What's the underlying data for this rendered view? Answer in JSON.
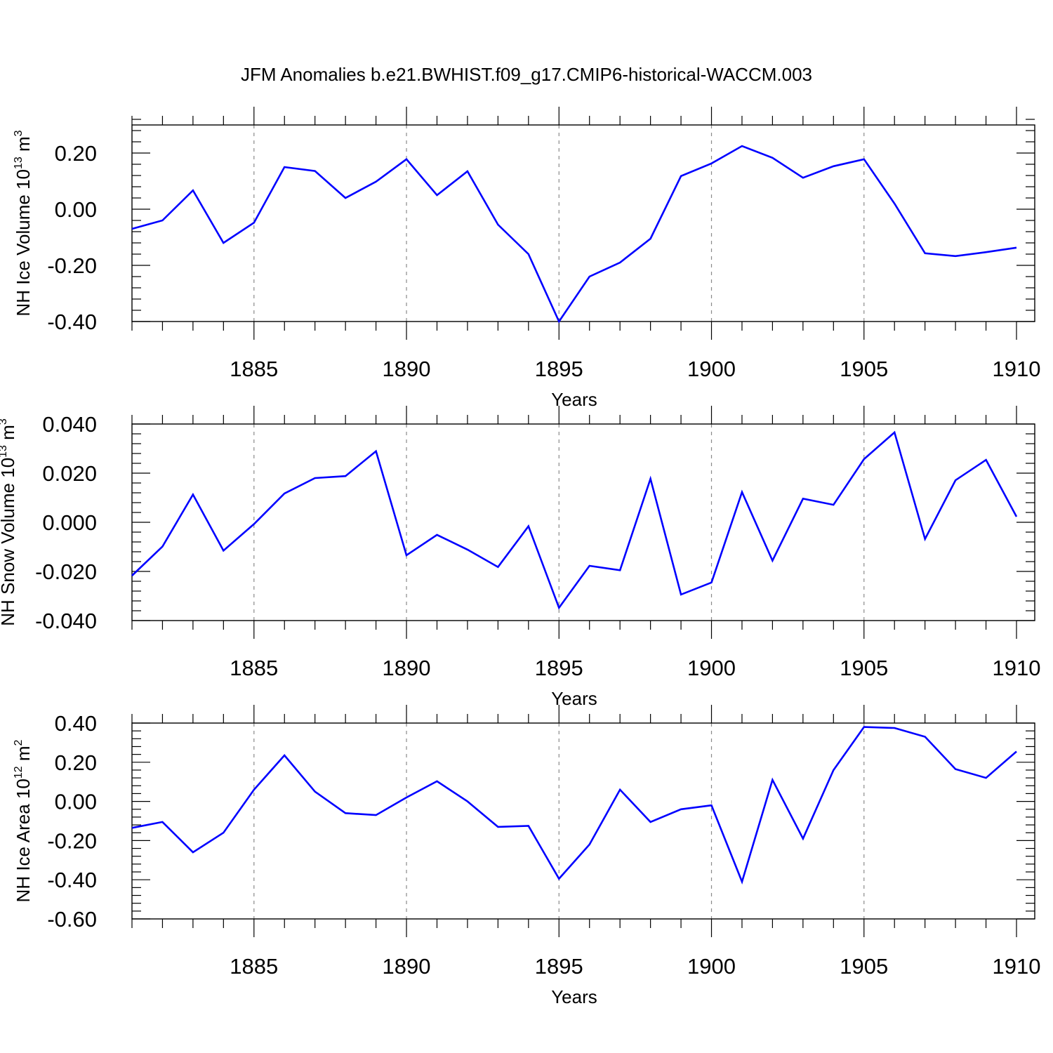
{
  "title": "JFM Anomalies b.e21.BWHIST.f09_g17.CMIP6-historical-WACCM.003",
  "chart_data": [
    {
      "type": "line",
      "id": "ice-volume",
      "xlabel": "Years",
      "ylabel": {
        "prefix": "NH Ice Volume 10",
        "exp": "13",
        "unit": " m",
        "unit_exp": "3"
      },
      "xlim": [
        1881,
        1910
      ],
      "ylim": [
        -0.4,
        0.3
      ],
      "xticks": [
        "1885",
        "1890",
        "1895",
        "1900",
        "1905",
        "1910"
      ],
      "yticks": [
        "0.20",
        "0.00",
        "-0.20",
        "-0.40"
      ],
      "ytick_values": [
        0.2,
        0.0,
        -0.2,
        -0.4
      ],
      "ymajor_step": 0.2,
      "yminor_step": 0.04,
      "series": [
        {
          "name": "NH Ice Volume",
          "color": "#0000ff",
          "x": [
            1881,
            1882,
            1883,
            1884,
            1885,
            1886,
            1887,
            1888,
            1889,
            1890,
            1891,
            1892,
            1893,
            1894,
            1895,
            1896,
            1897,
            1898,
            1899,
            1900,
            1901,
            1902,
            1903,
            1904,
            1905,
            1906,
            1907,
            1908,
            1909,
            1910
          ],
          "values": [
            -0.07,
            -0.04,
            0.067,
            -0.12,
            -0.048,
            0.15,
            0.136,
            0.04,
            0.098,
            0.178,
            0.05,
            0.135,
            -0.055,
            -0.16,
            -0.4,
            -0.24,
            -0.19,
            -0.105,
            0.118,
            0.163,
            0.225,
            0.183,
            0.112,
            0.153,
            0.178,
            0.02,
            -0.157,
            -0.167,
            -0.153,
            -0.137
          ]
        }
      ]
    },
    {
      "type": "line",
      "id": "snow-volume",
      "xlabel": "Years",
      "ylabel": {
        "prefix": "NH Snow Volume 10",
        "exp": "13",
        "unit": " m",
        "unit_exp": "3"
      },
      "xlim": [
        1881,
        1910
      ],
      "ylim": [
        -0.04,
        0.04
      ],
      "xticks": [
        "1885",
        "1890",
        "1895",
        "1900",
        "1905",
        "1910"
      ],
      "yticks": [
        "0.040",
        "0.020",
        "0.000",
        "-0.020",
        "-0.040"
      ],
      "ytick_values": [
        0.04,
        0.02,
        0.0,
        -0.02,
        -0.04
      ],
      "ymajor_step": 0.02,
      "yminor_step": 0.004,
      "series": [
        {
          "name": "NH Snow Volume",
          "color": "#0000ff",
          "x": [
            1881,
            1882,
            1883,
            1884,
            1885,
            1886,
            1887,
            1888,
            1889,
            1890,
            1891,
            1892,
            1893,
            1894,
            1895,
            1896,
            1897,
            1898,
            1899,
            1900,
            1901,
            1902,
            1903,
            1904,
            1905,
            1906,
            1907,
            1908,
            1909,
            1910
          ],
          "values": [
            -0.0217,
            -0.0099,
            0.0113,
            -0.0115,
            -0.0007,
            0.0117,
            0.018,
            0.0188,
            0.0289,
            -0.0134,
            -0.0051,
            -0.0111,
            -0.0182,
            -0.0016,
            -0.0348,
            -0.0177,
            -0.0195,
            0.0177,
            -0.0294,
            -0.0245,
            0.0123,
            -0.0156,
            0.0096,
            0.0071,
            0.0257,
            0.0366,
            -0.0068,
            0.0171,
            0.0254,
            0.0023
          ]
        }
      ]
    },
    {
      "type": "line",
      "id": "ice-area",
      "xlabel": "Years",
      "ylabel": {
        "prefix": "NH Ice Area 10",
        "exp": "12",
        "unit": " m",
        "unit_exp": "2"
      },
      "xlim": [
        1881,
        1910
      ],
      "ylim": [
        -0.6,
        0.4
      ],
      "xticks": [
        "1885",
        "1890",
        "1895",
        "1900",
        "1905",
        "1910"
      ],
      "yticks": [
        "0.40",
        "0.20",
        "0.00",
        "-0.20",
        "-0.40",
        "-0.60"
      ],
      "ytick_values": [
        0.4,
        0.2,
        0.0,
        -0.2,
        -0.4,
        -0.6
      ],
      "ymajor_step": 0.2,
      "yminor_step": 0.04,
      "series": [
        {
          "name": "NH Ice Area",
          "color": "#0000ff",
          "x": [
            1881,
            1882,
            1883,
            1884,
            1885,
            1886,
            1887,
            1888,
            1889,
            1890,
            1891,
            1892,
            1893,
            1894,
            1895,
            1896,
            1897,
            1898,
            1899,
            1900,
            1901,
            1902,
            1903,
            1904,
            1905,
            1906,
            1907,
            1908,
            1909,
            1910
          ],
          "values": [
            -0.135,
            -0.105,
            -0.26,
            -0.16,
            0.06,
            0.235,
            0.05,
            -0.06,
            -0.07,
            0.02,
            0.103,
            0.0,
            -0.13,
            -0.125,
            -0.395,
            -0.22,
            0.06,
            -0.105,
            -0.04,
            -0.02,
            -0.41,
            0.11,
            -0.19,
            0.16,
            0.38,
            0.375,
            0.33,
            0.165,
            0.12,
            0.255
          ]
        }
      ]
    }
  ]
}
